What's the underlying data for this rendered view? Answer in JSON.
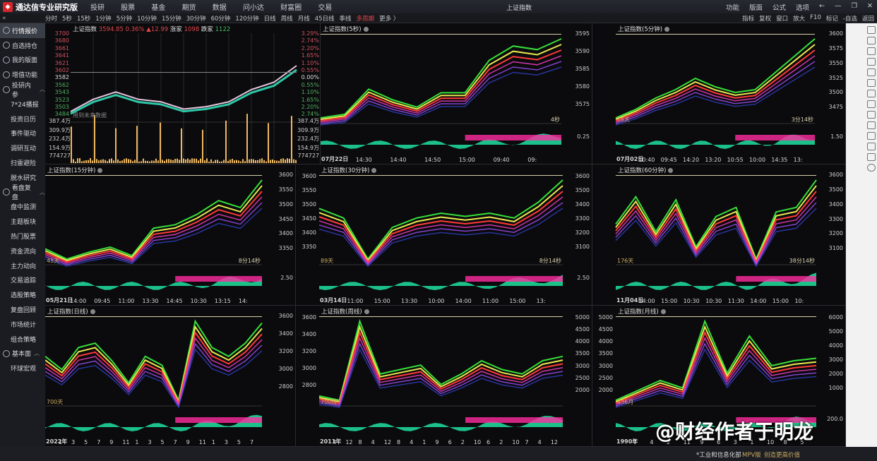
{
  "app": {
    "title": "通达信专业研究版",
    "window_title": "上证指数",
    "menu": [
      "投研",
      "股票",
      "基金",
      "期货",
      "数据",
      "问小达",
      "财富圈",
      "交易"
    ],
    "right_menu": [
      "功能",
      "版面",
      "公式",
      "选项"
    ],
    "window_controls": [
      "←",
      "—",
      "❐",
      "✕"
    ]
  },
  "toolbar": {
    "collapse": "«",
    "periods": [
      "分时",
      "5秒",
      "15秒",
      "1分钟",
      "5分钟",
      "10分钟",
      "15分钟",
      "30分钟",
      "60分钟",
      "120分钟",
      "日线",
      "周线",
      "月线",
      "45日线",
      "季线",
      "多周期",
      "更多 〉"
    ],
    "active_period": "多周期",
    "tools": [
      "指标",
      "复权",
      "窗口",
      "放大",
      "F10",
      "标记",
      "-自选",
      "返回"
    ]
  },
  "sidebar": {
    "items": [
      {
        "label": "行情报价",
        "type": "main",
        "active": true
      },
      {
        "label": "自选持仓",
        "type": "main"
      },
      {
        "label": "我的版面",
        "type": "main"
      },
      {
        "label": "增值功能",
        "type": "main"
      },
      {
        "label": "投研内参",
        "type": "group"
      },
      {
        "label": "7*24播报",
        "type": "sub"
      },
      {
        "label": "投资日历",
        "type": "sub"
      },
      {
        "label": "事件驱动",
        "type": "sub"
      },
      {
        "label": "调研互动",
        "type": "sub"
      },
      {
        "label": "扫雷避险",
        "type": "sub"
      },
      {
        "label": "脱水研究",
        "type": "sub"
      },
      {
        "label": "看盘复盘",
        "type": "group"
      },
      {
        "label": "盘中监测",
        "type": "sub"
      },
      {
        "label": "主题板块",
        "type": "sub"
      },
      {
        "label": "热门股票",
        "type": "sub"
      },
      {
        "label": "资金流向",
        "type": "sub"
      },
      {
        "label": "主力动向",
        "type": "sub"
      },
      {
        "label": "交易追踪",
        "type": "sub"
      },
      {
        "label": "选股策略",
        "type": "sub"
      },
      {
        "label": "复盘回顾",
        "type": "sub"
      },
      {
        "label": "市场统计",
        "type": "sub"
      },
      {
        "label": "组合策略",
        "type": "sub"
      },
      {
        "label": "基本面",
        "type": "group"
      },
      {
        "label": "环球宏观",
        "type": "sub"
      }
    ]
  },
  "quote": {
    "name": "上证指数",
    "price": "3594.85",
    "pct": "0.36%",
    "change": "▲12.99",
    "up_label": "涨家",
    "up_count": "1098",
    "down_label": "跌家",
    "down_count": "1122"
  },
  "chart_data": [
    {
      "id": "intraday",
      "type": "line",
      "title": "上证指数 分时",
      "yticks_left": [
        "3700",
        "3680",
        "3661",
        "3641",
        "3621",
        "3602",
        "3582",
        "3562",
        "3543",
        "3523",
        "3503",
        "3484"
      ],
      "yticks_right": [
        "3.29%",
        "2.74%",
        "2.20%",
        "1.65%",
        "1.10%",
        "0.55%",
        "0.00%",
        "0.55%",
        "1.10%",
        "1.65%",
        "2.20%",
        "2.74%"
      ],
      "volume_ticks": [
        "387.4万",
        "309.9万",
        "232.4万",
        "154.9万",
        "774727"
      ],
      "note": "用到未来数据",
      "x": [
        0,
        10,
        20,
        30,
        40,
        50,
        60,
        70,
        80,
        90,
        100
      ],
      "values": [
        3500,
        3525,
        3540,
        3525,
        3520,
        3505,
        3510,
        3520,
        3545,
        3560,
        3594
      ]
    },
    {
      "id": "5s",
      "type": "line",
      "title": "上证指数(5秒)",
      "yticks": [
        "3595",
        "3590",
        "3585",
        "3580",
        "3575"
      ],
      "xticks": [
        "07月22日",
        "14:30",
        "14:40",
        "14:50",
        "15:00",
        "09:40",
        "09:"
      ],
      "sub_tick": "0.25",
      "right_tag": "4秒",
      "values": [
        3573,
        3574,
        3581,
        3578,
        3576,
        3580,
        3580,
        3589,
        3593,
        3592,
        3595
      ]
    },
    {
      "id": "5m",
      "type": "line",
      "title": "上证指数(5分钟)",
      "yticks": [
        "3600",
        "3575",
        "3550",
        "3525",
        "3500",
        "3475"
      ],
      "xticks": [
        "07月02日",
        "10:40",
        "09:45",
        "14:20",
        "13:20",
        "10:55",
        "10:00",
        "14:35",
        "13:"
      ],
      "sub_tick": "1.50",
      "left_tag": "16天",
      "right_tag": "3分14秒",
      "values": [
        3460,
        3475,
        3495,
        3510,
        3530,
        3515,
        3505,
        3510,
        3540,
        3570,
        3600
      ]
    },
    {
      "id": "15m",
      "type": "line",
      "title": "上证指数(15分钟)",
      "yticks": [
        "3600",
        "3550",
        "3500",
        "3450",
        "3400",
        "3350"
      ],
      "xticks": [
        "05月21日",
        "14:00",
        "09:45",
        "11:00",
        "13:30",
        "14:45",
        "10:30",
        "13:15",
        "14:"
      ],
      "sub_tick": "2.50",
      "left_tag": "45天",
      "right_tag": "8分14秒",
      "values": [
        3390,
        3360,
        3380,
        3395,
        3370,
        3450,
        3460,
        3490,
        3530,
        3510,
        3590
      ]
    },
    {
      "id": "30m",
      "type": "line",
      "title": "上证指数(30分钟)",
      "yticks_left": [
        "3600",
        "3550",
        "3500",
        "3450",
        "3400",
        "3350"
      ],
      "yticks_right": [
        "3600",
        "3500",
        "3400",
        "3300",
        "3200",
        "3100"
      ],
      "xticks": [
        "03月14日",
        "11:00",
        "15:00",
        "13:30",
        "10:00",
        "14:00",
        "11:00",
        "15:00",
        "13:"
      ],
      "sub_tick": "2.50",
      "left_tag": "89天",
      "right_tag": "8分14秒",
      "values": [
        3510,
        3480,
        3350,
        3450,
        3480,
        3495,
        3485,
        3495,
        3480,
        3530,
        3600
      ]
    },
    {
      "id": "60m",
      "type": "line",
      "title": "上证指数(60分钟)",
      "yticks": [
        "3600",
        "3500",
        "3400",
        "3300",
        "3200",
        "3100"
      ],
      "xticks": [
        "11月04日",
        "14:00",
        "15:00",
        "10:30",
        "10:30",
        "11:30",
        "14:00",
        "15:00",
        "10:"
      ],
      "left_tag": "176天",
      "right_tag": "38分14秒",
      "values": [
        3300,
        3480,
        3250,
        3460,
        3150,
        3350,
        3410,
        3070,
        3380,
        3410,
        3590
      ]
    },
    {
      "id": "daily",
      "type": "line",
      "title": "上证指数(日线)",
      "yticks": [
        "3600",
        "3400",
        "3200",
        "3000",
        "2800"
      ],
      "xticks": [
        "2022年",
        "1",
        "3",
        "5",
        "7",
        "9",
        "11",
        "1",
        "3",
        "5",
        "7",
        "9",
        "11",
        "1",
        "3",
        "5",
        "7"
      ],
      "left_tag": "700天",
      "values": [
        3200,
        3050,
        3300,
        3350,
        3150,
        2900,
        3200,
        3100,
        2700,
        3600,
        3300,
        3200,
        3350,
        3580
      ]
    },
    {
      "id": "weekly",
      "type": "line",
      "title": "上证指数(周线)",
      "yticks_left": [
        "3600",
        "3400",
        "3200",
        "3000",
        "2800"
      ],
      "yticks_right": [
        "5000",
        "4500",
        "4000",
        "3500",
        "3000",
        "2500",
        "2000"
      ],
      "xticks": [
        "2011年",
        "4",
        "12",
        "8",
        "4",
        "12",
        "8",
        "4",
        "1",
        "9",
        "6",
        "2",
        "10",
        "6",
        "2",
        "10",
        "7",
        "4",
        "12"
      ],
      "left_tag": "700周",
      "values": [
        2750,
        2700,
        3600,
        3000,
        3050,
        3100,
        2880,
        3000,
        3150,
        3050,
        3000,
        3150,
        3200
      ]
    },
    {
      "id": "monthly",
      "type": "line",
      "title": "上证指数(月线)",
      "yticks_left": [
        "5000",
        "4500",
        "4000",
        "3500",
        "3000",
        "2500",
        "2000"
      ],
      "yticks_right": [
        "6000",
        "5000",
        "4000",
        "3000",
        "2000",
        "1000"
      ],
      "xticks": [
        "1990年",
        "7",
        "4",
        "2",
        "11",
        "9",
        "6",
        "3",
        "1",
        "10",
        "8",
        "5"
      ],
      "sub_tick": "200.0",
      "left_tag": "436月",
      "values": [
        1900,
        2300,
        2700,
        2400,
        5100,
        3000,
        4500,
        3300,
        3500,
        3600
      ]
    }
  ],
  "watermark": "@财经作者于明龙",
  "status": {
    "text1": "*工业和信息化部",
    "text2": "MPV版",
    "text3": "创造更高价值"
  }
}
